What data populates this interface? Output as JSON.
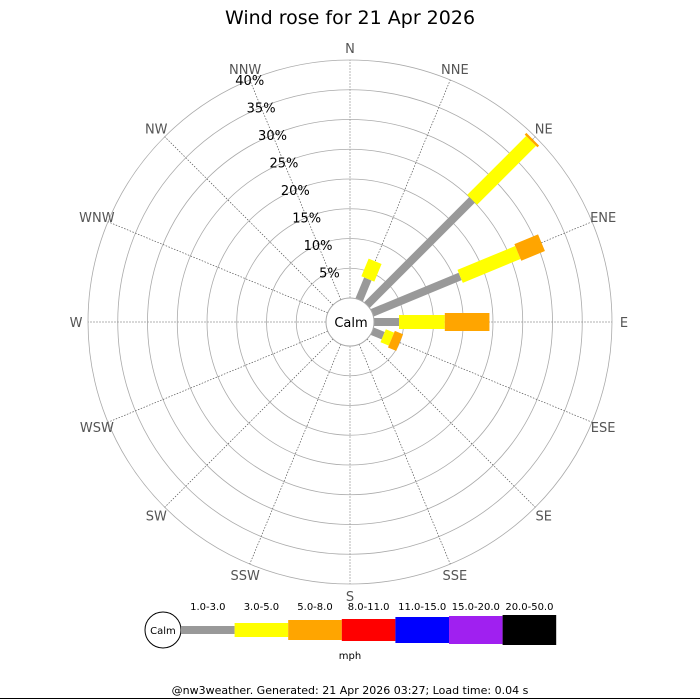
{
  "chart_data": {
    "type": "wind-rose",
    "title": "Wind rose for 21 Apr 2026",
    "directions": [
      "N",
      "NNE",
      "NE",
      "ENE",
      "E",
      "ESE",
      "SE",
      "SSE",
      "S",
      "SSW",
      "SW",
      "WSW",
      "W",
      "WNW",
      "NW",
      "NNW"
    ],
    "radial_ticks": [
      "5%",
      "10%",
      "15%",
      "20%",
      "25%",
      "30%",
      "35%",
      "40%"
    ],
    "radial_max_percent": 40,
    "calm_label": "Calm",
    "unit_label": "mph",
    "speed_bins": [
      {
        "label": "1.0-3.0",
        "color": "#999999"
      },
      {
        "label": "3.0-5.0",
        "color": "#ffff00"
      },
      {
        "label": "5.0-8.0",
        "color": "#ffa500"
      },
      {
        "label": "8.0-11.0",
        "color": "#ff0000"
      },
      {
        "label": "11.0-15.0",
        "color": "#0000ff"
      },
      {
        "label": "15.0-20.0",
        "color": "#a020f0"
      },
      {
        "label": "20.0-50.0",
        "color": "#000000"
      }
    ],
    "series_percent_by_direction": {
      "NNE": [
        3.8,
        3.2,
        0,
        0,
        0,
        0,
        0
      ],
      "NE": [
        25.0,
        14.0,
        0.4,
        0,
        0,
        0,
        0
      ],
      "ENE": [
        16.0,
        10.5,
        4.3,
        0,
        0,
        0,
        0
      ],
      "E": [
        4.2,
        7.7,
        7.5,
        0,
        0,
        0,
        0
      ],
      "ESE": [
        2.0,
        1.5,
        1.5,
        0,
        0,
        0,
        0
      ]
    }
  },
  "footer": "@nw3weather. Generated: 21 Apr 2026 03:27; Load time: 0.04 s"
}
